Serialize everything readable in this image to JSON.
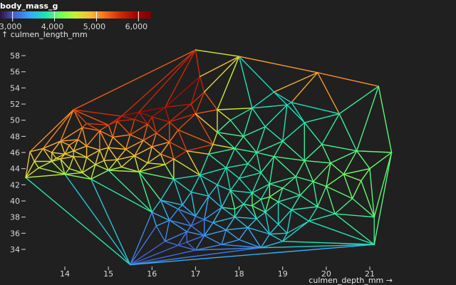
{
  "chart_data": {
    "type": "scatter",
    "rendering": "delaunay mesh colored by body mass",
    "legend": {
      "title": "body_mass_g",
      "ticks": [
        "3,000",
        "4,000",
        "5,000",
        "6,000"
      ],
      "tick_values": [
        3000,
        4000,
        5000,
        6000
      ],
      "domain": [
        2700,
        6300
      ],
      "colormap": "turbo",
      "placement": "top-left"
    },
    "x_axis": {
      "label": "culmen_depth_mm →",
      "range": [
        13.1,
        21.5
      ],
      "ticks": [
        "14",
        "15",
        "16",
        "17",
        "18",
        "19",
        "20",
        "21"
      ],
      "tick_values": [
        14,
        15,
        16,
        17,
        18,
        19,
        20,
        21
      ]
    },
    "y_axis": {
      "label": "↑ culmen_length_mm",
      "range": [
        32.1,
        59.6
      ],
      "ticks": [
        "34",
        "36",
        "38",
        "40",
        "42",
        "44",
        "46",
        "48",
        "50",
        "52",
        "54",
        "56",
        "58"
      ],
      "tick_values": [
        34,
        36,
        38,
        40,
        42,
        44,
        46,
        48,
        50,
        52,
        54,
        56,
        58
      ]
    },
    "grid": false,
    "points": [
      [
        15.5,
        32.1,
        3000
      ],
      [
        13.1,
        42.9,
        4700
      ],
      [
        13.2,
        46.1,
        4800
      ],
      [
        13.3,
        44.9,
        4600
      ],
      [
        13.4,
        44.1,
        4550
      ],
      [
        13.5,
        46.5,
        4900
      ],
      [
        13.7,
        44.9,
        4500
      ],
      [
        13.7,
        46.0,
        4800
      ],
      [
        13.8,
        45.3,
        4650
      ],
      [
        13.9,
        45.2,
        4750
      ],
      [
        13.9,
        47.4,
        4900
      ],
      [
        14.0,
        43.3,
        4200
      ],
      [
        14.0,
        45.8,
        4700
      ],
      [
        14.1,
        44.0,
        4400
      ],
      [
        14.1,
        46.9,
        5000
      ],
      [
        14.2,
        45.5,
        4800
      ],
      [
        14.2,
        46.2,
        4650
      ],
      [
        14.2,
        51.3,
        5300
      ],
      [
        14.3,
        47.6,
        5000
      ],
      [
        14.4,
        43.5,
        4500
      ],
      [
        14.4,
        49.1,
        5150
      ],
      [
        14.5,
        45.4,
        4700
      ],
      [
        14.5,
        46.8,
        4900
      ],
      [
        14.5,
        49.6,
        5600
      ],
      [
        14.6,
        42.7,
        4200
      ],
      [
        14.7,
        44.5,
        4600
      ],
      [
        14.8,
        46.3,
        4850
      ],
      [
        14.8,
        48.7,
        5300
      ],
      [
        14.9,
        45.0,
        4700
      ],
      [
        15.0,
        43.8,
        4300
      ],
      [
        15.0,
        46.6,
        4800
      ],
      [
        15.0,
        49.4,
        5400
      ],
      [
        15.1,
        47.9,
        5000
      ],
      [
        15.2,
        45.1,
        4750
      ],
      [
        15.2,
        49.9,
        5550
      ],
      [
        15.3,
        44.2,
        4450
      ],
      [
        15.3,
        50.5,
        5800
      ],
      [
        15.4,
        46.4,
        4900
      ],
      [
        15.5,
        48.2,
        5200
      ],
      [
        15.6,
        45.6,
        4800
      ],
      [
        15.6,
        50.1,
        5700
      ],
      [
        15.7,
        43.6,
        4400
      ],
      [
        15.7,
        51.0,
        5950
      ],
      [
        15.8,
        47.5,
        5100
      ],
      [
        15.9,
        44.7,
        4650
      ],
      [
        15.9,
        49.5,
        5500
      ],
      [
        16.0,
        46.7,
        4950
      ],
      [
        16.0,
        50.4,
        5750
      ],
      [
        16.1,
        48.4,
        5350
      ],
      [
        16.2,
        45.8,
        4850
      ],
      [
        16.3,
        51.6,
        5900
      ],
      [
        16.3,
        44.5,
        4600
      ],
      [
        16.4,
        47.3,
        5100
      ],
      [
        16.4,
        49.8,
        5650
      ],
      [
        16.5,
        45.2,
        5400
      ],
      [
        16.6,
        48.8,
        5300
      ],
      [
        16.8,
        46.2,
        5700
      ],
      [
        16.9,
        52.0,
        5600
      ],
      [
        17.0,
        58.7,
        5300
      ],
      [
        17.0,
        50.8,
        5500
      ],
      [
        17.1,
        55.4,
        5850
      ],
      [
        17.2,
        53.5,
        5500
      ],
      [
        17.4,
        47.0,
        5300
      ],
      [
        17.5,
        51.3,
        5200
      ],
      [
        19.8,
        55.9,
        6200
      ],
      [
        16.0,
        38.6,
        3500
      ],
      [
        16.1,
        36.9,
        3300
      ],
      [
        16.2,
        40.1,
        3600
      ],
      [
        16.3,
        35.0,
        3100
      ],
      [
        16.4,
        37.6,
        3400
      ],
      [
        16.5,
        42.7,
        3700
      ],
      [
        16.6,
        34.5,
        3100
      ],
      [
        16.7,
        39.5,
        3500
      ],
      [
        16.8,
        36.2,
        3300
      ],
      [
        16.9,
        41.1,
        3700
      ],
      [
        17.0,
        33.9,
        3200
      ],
      [
        17.0,
        38.1,
        3450
      ],
      [
        17.1,
        43.2,
        3750
      ],
      [
        17.2,
        35.7,
        3350
      ],
      [
        17.3,
        40.6,
        3600
      ],
      [
        17.3,
        45.8,
        3900
      ],
      [
        17.4,
        37.3,
        3500
      ],
      [
        17.5,
        42.0,
        3650
      ],
      [
        17.5,
        48.5,
        4000
      ],
      [
        17.6,
        34.6,
        3250
      ],
      [
        17.6,
        39.2,
        3550
      ],
      [
        17.7,
        36.4,
        3400
      ],
      [
        17.7,
        44.1,
        3800
      ],
      [
        17.8,
        41.3,
        3700
      ],
      [
        17.8,
        50.0,
        3850
      ],
      [
        17.9,
        38.0,
        3600
      ],
      [
        17.9,
        46.5,
        3900
      ],
      [
        18.0,
        35.2,
        3400
      ],
      [
        18.0,
        42.8,
        3750
      ],
      [
        18.1,
        39.6,
        3650
      ],
      [
        18.1,
        48.0,
        3950
      ],
      [
        18.2,
        36.7,
        3500
      ],
      [
        18.2,
        44.6,
        3850
      ],
      [
        18.3,
        41.0,
        3800
      ],
      [
        18.3,
        51.5,
        3800
      ],
      [
        18.4,
        37.8,
        3600
      ],
      [
        18.4,
        46.0,
        3900
      ],
      [
        18.5,
        34.2,
        3350
      ],
      [
        18.5,
        40.2,
        3750
      ],
      [
        18.5,
        43.5,
        3850
      ],
      [
        18.6,
        38.6,
        3700
      ],
      [
        18.6,
        49.2,
        3800
      ],
      [
        18.7,
        35.9,
        3550
      ],
      [
        18.7,
        42.1,
        3850
      ],
      [
        18.8,
        45.5,
        3950
      ],
      [
        18.9,
        37.1,
        3650
      ],
      [
        18.9,
        39.9,
        3800
      ],
      [
        19.0,
        41.6,
        3900
      ],
      [
        19.0,
        47.4,
        3850
      ],
      [
        19.1,
        36.0,
        3600
      ],
      [
        19.1,
        51.9,
        3750
      ],
      [
        19.2,
        38.9,
        3800
      ],
      [
        19.3,
        43.0,
        3950
      ],
      [
        19.4,
        40.7,
        3900
      ],
      [
        19.5,
        45.0,
        4000
      ],
      [
        19.5,
        49.7,
        3800
      ],
      [
        19.6,
        37.5,
        3700
      ],
      [
        19.7,
        42.4,
        4000
      ],
      [
        19.8,
        39.3,
        3850
      ],
      [
        19.9,
        47.0,
        3950
      ],
      [
        20.0,
        41.8,
        4100
      ],
      [
        20.1,
        44.7,
        4050
      ],
      [
        20.2,
        38.4,
        3900
      ],
      [
        20.3,
        50.8,
        3850
      ],
      [
        20.4,
        43.3,
        4150
      ],
      [
        20.6,
        40.3,
        4050
      ],
      [
        20.7,
        46.2,
        4000
      ],
      [
        20.8,
        42.5,
        4200
      ],
      [
        21.0,
        44.0,
        4100
      ],
      [
        21.1,
        38.0,
        3950
      ],
      [
        21.2,
        54.2,
        3950
      ],
      [
        21.5,
        46.0,
        4150
      ],
      [
        18.0,
        57.9,
        3800
      ],
      [
        19.2,
        52.2,
        3700
      ],
      [
        18.8,
        53.5,
        3650
      ],
      [
        21.1,
        34.6,
        3900
      ],
      [
        19.0,
        35.0,
        3700
      ],
      [
        18.3,
        39.4,
        4300
      ],
      [
        18.7,
        40.5,
        4400
      ],
      [
        17.9,
        39.0,
        4250
      ],
      [
        16.8,
        34.9,
        2900
      ],
      [
        16.6,
        39.0,
        3200
      ],
      [
        16.9,
        36.9,
        3050
      ],
      [
        17.2,
        37.7,
        3150
      ]
    ]
  }
}
